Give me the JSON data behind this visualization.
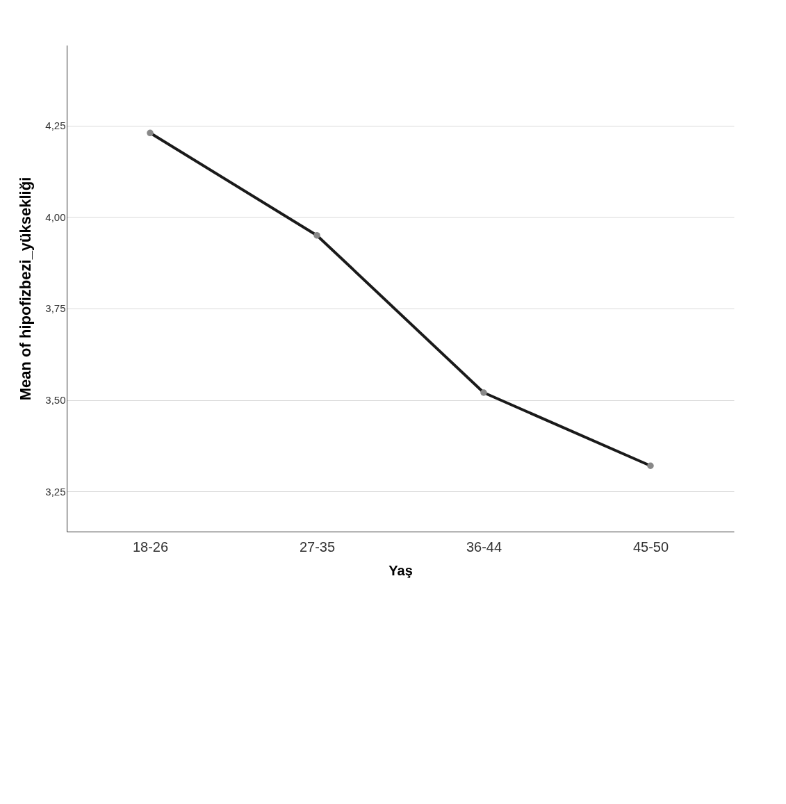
{
  "chart_data": {
    "type": "line",
    "xlabel": "Yaş",
    "ylabel": "Mean of hipofizbezi_yüksekliği",
    "categories": [
      "18-26",
      "27-35",
      "36-44",
      "45-50"
    ],
    "series": [
      {
        "color": "#1a1a1a",
        "values": [
          4.23,
          3.95,
          3.52,
          3.32
        ]
      }
    ],
    "ylim": [
      3.14,
      4.47
    ],
    "yticks": [
      {
        "value": 3.25,
        "label": "3,25"
      },
      {
        "value": 3.5,
        "label": "3,50"
      },
      {
        "value": 3.75,
        "label": "3,75"
      },
      {
        "value": 4,
        "label": "4,00"
      },
      {
        "value": 4.25,
        "label": "4,25"
      }
    ],
    "grid": "y",
    "marker": "circle",
    "line_style": "solid",
    "legend": false
  }
}
